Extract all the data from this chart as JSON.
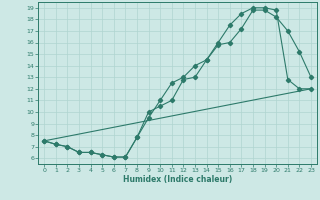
{
  "title": "",
  "xlabel": "Humidex (Indice chaleur)",
  "bg_color": "#cde8e5",
  "line_color": "#2d7a6a",
  "grid_color": "#b0d5d0",
  "xlim": [
    -0.5,
    23.5
  ],
  "ylim": [
    5.5,
    19.5
  ],
  "xticks": [
    0,
    1,
    2,
    3,
    4,
    5,
    6,
    7,
    8,
    9,
    10,
    11,
    12,
    13,
    14,
    15,
    16,
    17,
    18,
    19,
    20,
    21,
    22,
    23
  ],
  "yticks": [
    6,
    7,
    8,
    9,
    10,
    11,
    12,
    13,
    14,
    15,
    16,
    17,
    18,
    19
  ],
  "line1_x": [
    0,
    1,
    2,
    3,
    4,
    5,
    6,
    7,
    8,
    9,
    10,
    11,
    12,
    13,
    14,
    15,
    16,
    17,
    18,
    19,
    20,
    21,
    22,
    23
  ],
  "line1_y": [
    7.5,
    7.2,
    7.0,
    6.5,
    6.5,
    6.3,
    6.1,
    6.1,
    7.8,
    9.5,
    11.0,
    12.5,
    13.0,
    14.0,
    14.5,
    15.8,
    16.0,
    17.2,
    18.8,
    18.8,
    18.2,
    17.0,
    15.2,
    13.0
  ],
  "line2_x": [
    0,
    1,
    2,
    3,
    4,
    5,
    6,
    7,
    8,
    9,
    10,
    11,
    12,
    13,
    14,
    15,
    16,
    17,
    18,
    19,
    20,
    21,
    22,
    23
  ],
  "line2_y": [
    7.5,
    7.2,
    7.0,
    6.5,
    6.5,
    6.3,
    6.1,
    6.1,
    7.8,
    10.0,
    10.5,
    11.0,
    12.8,
    13.0,
    14.5,
    16.0,
    17.5,
    18.5,
    19.0,
    19.0,
    18.8,
    12.8,
    12.0,
    12.0
  ],
  "line3_x": [
    0,
    23
  ],
  "line3_y": [
    7.5,
    12.0
  ]
}
